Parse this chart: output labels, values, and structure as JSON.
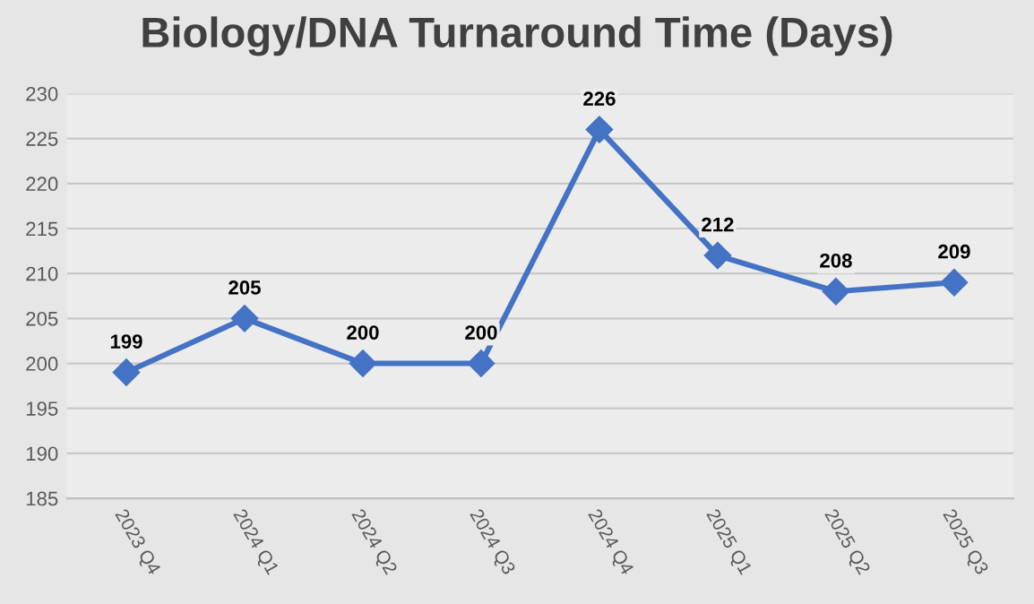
{
  "chart_data": {
    "type": "line",
    "title": "Biology/DNA Turnaround Time (Days)",
    "categories": [
      "2023 Q4",
      "2024 Q1",
      "2024 Q2",
      "2024 Q3",
      "2024 Q4",
      "2025 Q1",
      "2025 Q2",
      "2025 Q3"
    ],
    "series": [
      {
        "color": "#4472c4",
        "values": [
          199,
          205,
          200,
          200,
          226,
          212,
          208,
          209
        ]
      }
    ],
    "ylim": [
      185,
      230
    ],
    "yticks": [
      185,
      190,
      195,
      200,
      205,
      210,
      215,
      220,
      225,
      230
    ],
    "grid": "y",
    "marker": "diamond",
    "line_style": "solid",
    "data_labels": true,
    "legend": false
  }
}
